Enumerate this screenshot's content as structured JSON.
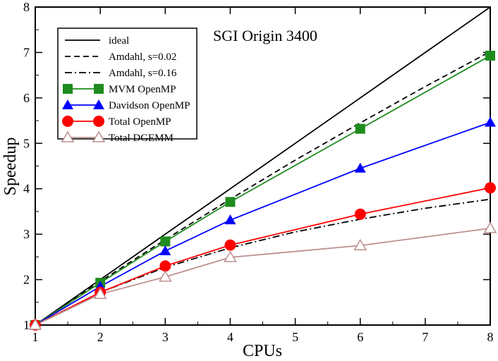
{
  "chart_data": {
    "type": "line",
    "title": "SGI Origin 3400",
    "xlabel": "CPUs",
    "ylabel": "Speedup",
    "xlim": [
      1,
      8
    ],
    "ylim": [
      1,
      8
    ],
    "xticks": [
      1,
      2,
      3,
      4,
      5,
      6,
      7,
      8
    ],
    "yticks": [
      1,
      2,
      3,
      4,
      5,
      6,
      7,
      8
    ],
    "legend_position": "top-left",
    "series": [
      {
        "name": "ideal",
        "style": "solid",
        "marker": "none",
        "color": "#000000",
        "x": [
          1,
          8
        ],
        "y": [
          1,
          8
        ]
      },
      {
        "name": "Amdahl, s=0.02",
        "style": "dashed",
        "marker": "none",
        "color": "#000000",
        "x": [
          1,
          2,
          3,
          4,
          5,
          6,
          7,
          8
        ],
        "y": [
          1.0,
          1.96,
          2.88,
          3.77,
          4.63,
          5.45,
          6.25,
          7.02
        ]
      },
      {
        "name": "Amdahl, s=0.16",
        "style": "dashdot",
        "marker": "none",
        "color": "#000000",
        "x": [
          1,
          2,
          3,
          4,
          5,
          6,
          7,
          8
        ],
        "y": [
          1.0,
          1.72,
          2.27,
          2.7,
          3.05,
          3.33,
          3.57,
          3.77
        ]
      },
      {
        "name": "MVM OpenMP",
        "style": "solid",
        "marker": "square",
        "color": "#1e8c1e",
        "x": [
          1,
          2,
          3,
          4,
          6,
          8
        ],
        "y": [
          1.0,
          1.93,
          2.84,
          3.71,
          5.32,
          6.93
        ]
      },
      {
        "name": "Davidson OpenMP",
        "style": "solid",
        "marker": "triangle",
        "color": "#0000ff",
        "x": [
          1,
          2,
          3,
          4,
          6,
          8
        ],
        "y": [
          1.0,
          1.85,
          2.63,
          3.31,
          4.45,
          5.46
        ]
      },
      {
        "name": "Total OpenMP",
        "style": "solid",
        "marker": "circle",
        "color": "#ff0000",
        "x": [
          1,
          2,
          3,
          4,
          6,
          8
        ],
        "y": [
          1.0,
          1.72,
          2.3,
          2.76,
          3.44,
          4.02
        ]
      },
      {
        "name": "Total DGEMM",
        "style": "solid",
        "marker": "triangle-open",
        "color": "#bc8f8f",
        "x": [
          1,
          2,
          3,
          4,
          6,
          8
        ],
        "y": [
          1.0,
          1.68,
          2.06,
          2.49,
          2.75,
          3.13
        ]
      }
    ]
  }
}
